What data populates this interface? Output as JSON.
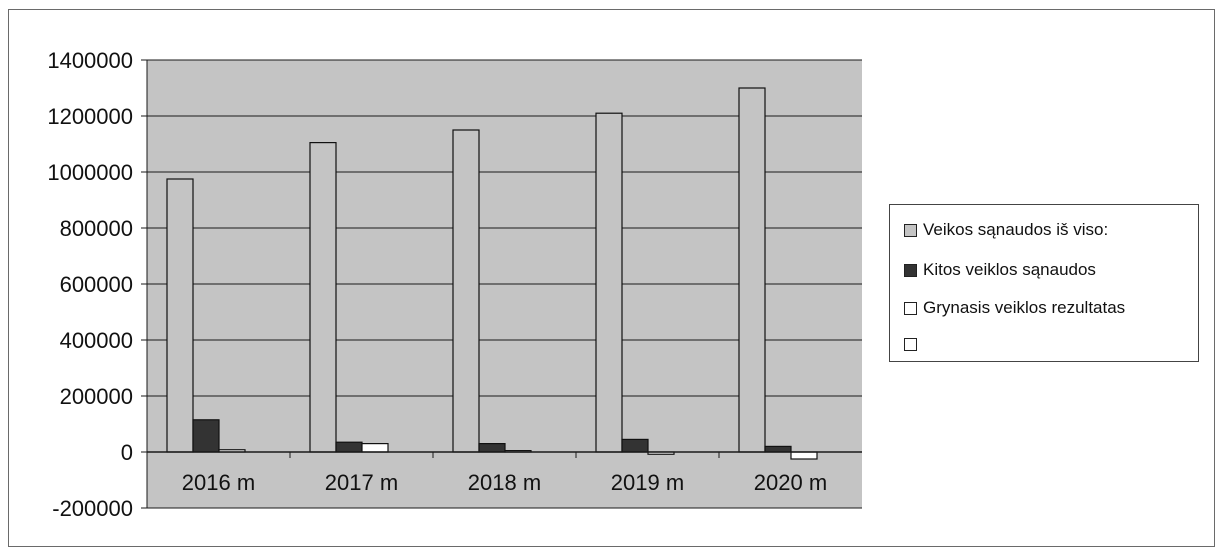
{
  "chart_data": {
    "type": "bar",
    "categories": [
      "2016 m",
      "2017 m",
      "2018 m",
      "2019 m",
      "2020 m"
    ],
    "series": [
      {
        "name": "Veikos sąnaudos iš viso:",
        "color": "#c4c4c4",
        "values": [
          975000,
          1105000,
          1150000,
          1210000,
          1300000
        ]
      },
      {
        "name": "Kitos veiklos sąnaudos",
        "color": "#333333",
        "values": [
          115000,
          35000,
          30000,
          45000,
          20000
        ]
      },
      {
        "name": "Grynasis veiklos rezultatas",
        "color": "#ffffff",
        "values": [
          8000,
          30000,
          5000,
          -8000,
          -25000
        ]
      },
      {
        "name": "",
        "color": "#ffffff",
        "values": [
          0,
          0,
          0,
          0,
          0
        ]
      }
    ],
    "yticks": [
      "1400000",
      "1200000",
      "1000000",
      "800000",
      "600000",
      "400000",
      "200000",
      "0",
      "-200000"
    ],
    "ylim": [
      -200000,
      1400000
    ],
    "grid": true,
    "legend_position": "right",
    "plot_background": "#c4c4c4"
  }
}
